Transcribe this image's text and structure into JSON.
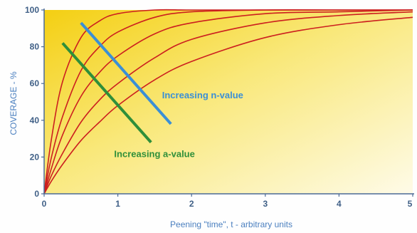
{
  "chart_data": {
    "type": "line",
    "xlabel": "Peening \"time\", t - arbitrary units",
    "ylabel": "COVERAGE - %",
    "xlim": [
      0,
      5
    ],
    "ylim": [
      0,
      100
    ],
    "x_ticks": [
      "0",
      "1",
      "2",
      "3",
      "4",
      "5"
    ],
    "y_ticks": [
      "0",
      "20",
      "40",
      "60",
      "80",
      "100"
    ],
    "grid": false,
    "background": "yellow gradient",
    "series": [
      {
        "x": [
          0,
          0.1,
          0.25,
          0.5,
          0.75,
          1.0,
          1.5,
          2.0,
          3.0,
          4.0,
          5.0
        ],
        "y": [
          0,
          30,
          61,
          85,
          94,
          98,
          100,
          100,
          100,
          100,
          100
        ]
      },
      {
        "x": [
          0,
          0.1,
          0.25,
          0.5,
          0.75,
          1.0,
          1.5,
          2.0,
          3.0,
          4.0,
          5.0
        ],
        "y": [
          0,
          20,
          42,
          67,
          80,
          88,
          96,
          99,
          100,
          100,
          100
        ]
      },
      {
        "x": [
          0,
          0.1,
          0.25,
          0.5,
          0.75,
          1.0,
          1.5,
          2.0,
          3.0,
          4.0,
          5.0
        ],
        "y": [
          0,
          14,
          32,
          53,
          66,
          75,
          87,
          93,
          98,
          99,
          100
        ]
      },
      {
        "x": [
          0,
          0.1,
          0.25,
          0.5,
          0.75,
          1.0,
          1.5,
          2.0,
          3.0,
          4.0,
          5.0
        ],
        "y": [
          0,
          10,
          22,
          39,
          51,
          60,
          74,
          84,
          93,
          97,
          99
        ]
      },
      {
        "x": [
          0,
          0.1,
          0.25,
          0.5,
          0.75,
          1.0,
          1.5,
          2.0,
          3.0,
          4.0,
          5.0
        ],
        "y": [
          0,
          7,
          16,
          29,
          39,
          48,
          62,
          72,
          85,
          92,
          96
        ]
      }
    ],
    "annotations": [
      {
        "text": "Increasing n-value",
        "color": "#3a8fd6",
        "arrow_from": [
          0.5,
          93
        ],
        "arrow_to": [
          1.72,
          38
        ],
        "label_at": [
          1.6,
          52
        ]
      },
      {
        "text": "Increasing a-value",
        "color": "#2f8f3a",
        "arrow_from": [
          0.25,
          82
        ],
        "arrow_to": [
          1.45,
          28
        ],
        "label_at": [
          0.95,
          20
        ]
      }
    ],
    "colors": {
      "curve": "#cc1f1f",
      "axis": "#4b6a96",
      "tick_text": "#3f5f86",
      "axis_title": "#4a7fbf"
    }
  }
}
